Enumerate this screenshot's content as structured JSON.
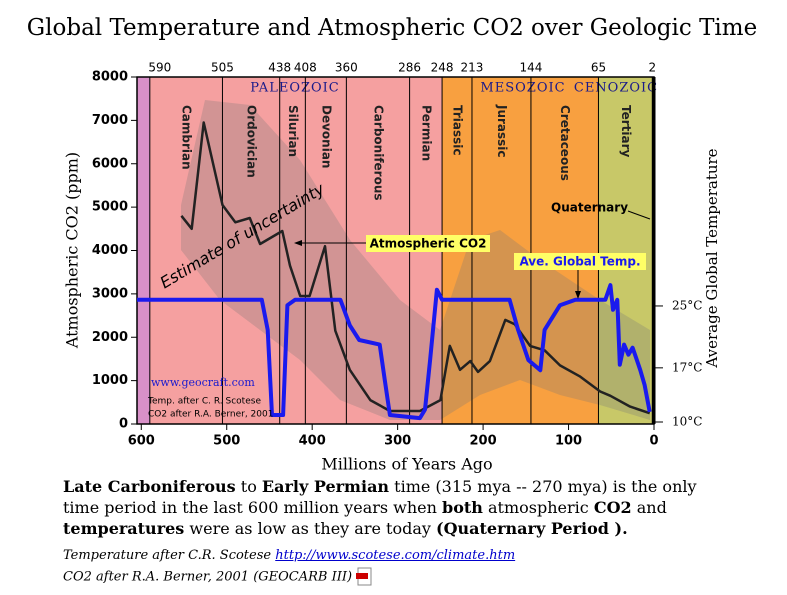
{
  "chart_data": {
    "type": "line",
    "title": "Global Temperature and Atmospheric CO2 over Geologic Time",
    "xlabel": "Millions of Years Ago",
    "ylabel": "Atmospheric CO2 (ppm)",
    "y2label": "Average Global Temperature",
    "xlim": [
      605,
      0
    ],
    "xticks": [
      600,
      500,
      400,
      300,
      200,
      100,
      0
    ],
    "ylim": [
      0,
      8000
    ],
    "yticks": [
      0,
      1000,
      2000,
      3000,
      4000,
      5000,
      6000,
      7000,
      8000
    ],
    "y2lim": [
      9.74,
      54.6
    ],
    "y2ticks": [
      {
        "value": 10,
        "label": "10°C"
      },
      {
        "value": 17,
        "label": "17°C"
      },
      {
        "value": 25,
        "label": "25°C"
      }
    ],
    "boundaries": [
      590,
      505,
      438,
      408,
      360,
      286,
      248,
      213,
      144,
      65,
      2
    ],
    "periods": [
      "Cambrian",
      "Ordovician",
      "Silurian",
      "Devonian",
      "Carboniferous",
      "Permian",
      "Triassic",
      "Jurassic",
      "Cretaceous",
      "Tertiary"
    ],
    "eras": [
      {
        "name": "PALEOZOIC",
        "color": "#f5a0a0"
      },
      {
        "name": "MESOZOIC",
        "color": "#f8a040"
      },
      {
        "name": "CENOZOIC",
        "color": "#c8c868"
      }
    ],
    "annotations": [
      "Estimate of uncertainty",
      "Quaternary",
      "www.geocraft.com",
      "Temp. after C. R. Scotese",
      "CO2 after R.A. Berner, 2001"
    ],
    "series": [
      {
        "name": "Atmospheric CO2",
        "color": "#222222",
        "x": [
          553,
          541,
          527,
          505,
          490,
          473,
          461,
          435,
          426,
          414,
          403,
          385,
          373,
          356,
          332,
          309,
          274,
          250,
          239,
          227,
          215,
          206,
          192,
          174,
          163,
          145,
          128,
          110,
          87,
          63,
          51,
          28,
          5
        ],
        "values": [
          4800,
          4500,
          6950,
          5050,
          4650,
          4750,
          4150,
          4450,
          3650,
          2950,
          2950,
          4100,
          2150,
          1250,
          550,
          300,
          300,
          550,
          1800,
          1250,
          1450,
          1200,
          1450,
          2400,
          2300,
          1800,
          1700,
          1350,
          1100,
          750,
          650,
          400,
          250
        ]
      },
      {
        "name": "Ave. Global Temp.",
        "color": "#1a1aee",
        "axis": "y2",
        "x": [
          605,
          459,
          452,
          447,
          434,
          429,
          420,
          367,
          356,
          345,
          321,
          315,
          309,
          274,
          268,
          262,
          254,
          248,
          169,
          159,
          147,
          133,
          128,
          110,
          92,
          57,
          51,
          48,
          43,
          40,
          35,
          30,
          25,
          20,
          16,
          11,
          5
        ],
        "values": [
          25.8,
          25.8,
          21.9,
          10.9,
          10.9,
          25.1,
          25.8,
          25.8,
          22.5,
          20.6,
          20,
          15.4,
          10.9,
          10.5,
          11.6,
          18,
          27.1,
          25.8,
          25.8,
          21.9,
          18,
          16.7,
          21.9,
          25.1,
          25.8,
          25.8,
          27.7,
          24.5,
          25.8,
          17.4,
          20,
          18.7,
          19.6,
          18,
          16.7,
          14.8,
          11.3
        ]
      }
    ]
  },
  "note": [
    {
      "text": "Late Carboniferous",
      "bold": true
    },
    {
      "text": " to ",
      "bold": false
    },
    {
      "text": "Early Permian",
      "bold": true
    },
    {
      "text": " time (315 mya -- 270 mya) is the only time period in the last 600 million years when ",
      "bold": false
    },
    {
      "text": "both",
      "bold": true
    },
    {
      "text": " atmospheric ",
      "bold": false
    },
    {
      "text": "CO2",
      "bold": true
    },
    {
      "text": " and ",
      "bold": false
    },
    {
      "text": "temperatures",
      "bold": true
    },
    {
      "text": " were as low as they are today ",
      "bold": false
    },
    {
      "text": "(Quaternary Period ).",
      "bold": true
    }
  ],
  "sources": {
    "temp_prefix": "Temperature after C.R. Scotese ",
    "temp_link": "http://www.scotese.com/climate.htm",
    "co2": "CO2 after R.A. Berner, 2001 (GEOCARB III)"
  }
}
